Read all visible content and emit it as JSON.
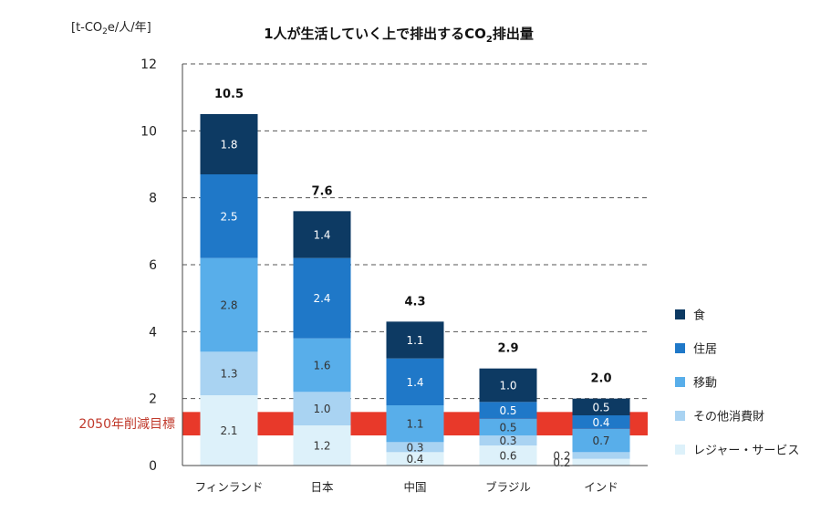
{
  "chart_data": {
    "type": "stacked-bar",
    "title_prefix": "1人が生活していく上で排出する",
    "title_chem": "CO",
    "title_sub": "2",
    "title_suffix": "排出量",
    "unit_prefix": "[t-CO",
    "unit_sub": "2",
    "unit_suffix": "e/人/年]",
    "ylim": [
      0,
      12
    ],
    "yticks": [
      0,
      2,
      4,
      6,
      8,
      10,
      12
    ],
    "categories": [
      "フィンランド",
      "日本",
      "中国",
      "ブラジル",
      "インド"
    ],
    "totals": [
      "10.5",
      "7.6",
      "4.3",
      "2.9",
      "2.0"
    ],
    "series": [
      {
        "name": "レジャー・サービス",
        "color": "#ddf1fa",
        "text_color": "#333333",
        "values": [
          2.1,
          1.2,
          0.4,
          0.6,
          0.2
        ],
        "labels": [
          "2.1",
          "1.2",
          "0.4",
          "0.6",
          "0.2"
        ]
      },
      {
        "name": "その他消費財",
        "color": "#a9d3f2",
        "text_color": "#333333",
        "values": [
          1.3,
          1.0,
          0.3,
          0.3,
          0.2
        ],
        "labels": [
          "1.3",
          "1.0",
          "0.3",
          "0.3",
          "0.2"
        ]
      },
      {
        "name": "移動",
        "color": "#58aeea",
        "text_color": "#333333",
        "values": [
          2.8,
          1.6,
          1.1,
          0.5,
          0.7
        ],
        "labels": [
          "2.8",
          "1.6",
          "1.1",
          "0.5",
          "0.7"
        ]
      },
      {
        "name": "住居",
        "color": "#1f78c8",
        "text_color": "#ffffff",
        "values": [
          2.5,
          2.4,
          1.4,
          0.5,
          0.4
        ],
        "labels": [
          "2.5",
          "2.4",
          "1.4",
          "0.5",
          "0.4"
        ]
      },
      {
        "name": "食",
        "color": "#0d3a63",
        "text_color": "#ffffff",
        "values": [
          1.8,
          1.4,
          1.1,
          1.0,
          0.5
        ],
        "labels": [
          "1.8",
          "1.4",
          "1.1",
          "1.0",
          "0.5"
        ]
      }
    ],
    "legend_order": [
      "食",
      "住居",
      "移動",
      "その他消費財",
      "レジャー・サービス"
    ],
    "target_band": {
      "label": "2050年削減目標",
      "ymin": 0.9,
      "ymax": 1.6,
      "color": "#e8392a"
    },
    "grid": "dashed-horizontal"
  }
}
